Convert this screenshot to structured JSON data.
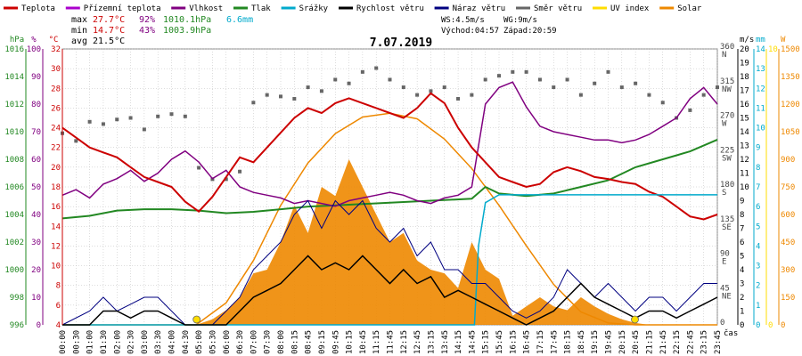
{
  "legend": [
    {
      "label": "Teplota",
      "color": "#cc0000"
    },
    {
      "label": "Přízemní teplota",
      "color": "#aa00cc"
    },
    {
      "label": "Vlhkost",
      "color": "#800080"
    },
    {
      "label": "Tlak",
      "color": "#228822"
    },
    {
      "label": "Srážky",
      "color": "#00aacc"
    },
    {
      "label": "Rychlost větru",
      "color": "#000000"
    },
    {
      "label": "Náraz větru",
      "color": "#000080"
    },
    {
      "label": "Směr větru",
      "color": "#666666"
    },
    {
      "label": "UV index",
      "color": "#ffdd00"
    },
    {
      "label": "Solar",
      "color": "#ee8800"
    }
  ],
  "stats": {
    "max_prefix": "max",
    "max_temp": "27.7°C",
    "max_hum": "92%",
    "max_press": "1010.1hPa",
    "max_rain": "6.6mm",
    "min_prefix": "min",
    "min_temp": "14.7°C",
    "min_hum": "43%",
    "min_press": "1003.9hPa",
    "avg_prefix": "avg",
    "avg_temp": "21.5°C",
    "ws": "WS:4.5m/s",
    "wg": "WG:9m/s",
    "sunrise": "Východ:04:57",
    "sunset": "Západ:20:59"
  },
  "colors": {
    "temp": "#cc0000",
    "hum": "#800080",
    "press": "#228822",
    "rain": "#00aacc",
    "wind": "#000000",
    "gust": "#000080",
    "dir": "#666666",
    "uv": "#ffdd00",
    "solar": "#ee8800",
    "grid": "#bbbbbb"
  },
  "chart_data": {
    "type": "line",
    "title": "7.07.2019",
    "xlabel": "čas",
    "x_ticks": [
      "00:00",
      "00:30",
      "01:00",
      "01:30",
      "02:00",
      "02:30",
      "03:00",
      "03:30",
      "04:00",
      "04:30",
      "05:00",
      "05:30",
      "06:00",
      "06:30",
      "07:00",
      "07:30",
      "08:00",
      "08:15",
      "08:45",
      "09:15",
      "09:45",
      "10:15",
      "10:45",
      "11:15",
      "11:45",
      "12:15",
      "12:45",
      "13:15",
      "13:45",
      "14:15",
      "14:45",
      "15:15",
      "15:45",
      "16:15",
      "16:45",
      "17:15",
      "17:45",
      "18:15",
      "18:45",
      "19:15",
      "19:45",
      "20:15",
      "20:45",
      "21:15",
      "21:45",
      "22:15",
      "22:45",
      "23:15",
      "23:45"
    ],
    "axes": {
      "pressure": {
        "label": "hPa",
        "ticks": [
          "1016",
          "1014",
          "1012",
          "1010",
          "1008",
          "1006",
          "1004",
          "1002",
          "1000",
          "998",
          "996"
        ],
        "ylim": [
          996,
          1017
        ]
      },
      "percent": {
        "label": "%",
        "ticks": [
          "100",
          "90",
          "80",
          "70",
          "60",
          "50",
          "40",
          "30",
          "20",
          "10",
          "0"
        ],
        "ylim": [
          0,
          100
        ]
      },
      "temperature": {
        "label": "°C",
        "ticks": [
          "32",
          "30",
          "28",
          "26",
          "24",
          "22",
          "20",
          "18",
          "16",
          "14",
          "12",
          "10",
          "8",
          "6",
          "4"
        ],
        "ylim": [
          4,
          32
        ]
      },
      "direction": {
        "label": "°",
        "ticks": [
          "360",
          "315",
          "270",
          "225",
          "180",
          "135",
          "90",
          "45",
          "0"
        ],
        "cardinals": [
          "N",
          "NW",
          "W",
          "SW",
          "S",
          "SE",
          "E",
          "NE",
          ""
        ],
        "ylim": [
          0,
          360
        ]
      },
      "wind": {
        "label": "m/s",
        "ticks": [
          "20",
          "19",
          "18",
          "17",
          "16",
          "15",
          "14",
          "13",
          "12",
          "11",
          "10",
          "9",
          "8",
          "7",
          "6",
          "5",
          "4",
          "3",
          "2",
          "1",
          "0"
        ],
        "ylim": [
          0,
          20
        ]
      },
      "rain": {
        "label": "mm",
        "ticks": [
          "14",
          "13",
          "12",
          "11",
          "10",
          "9",
          "8",
          "7",
          "6",
          "5",
          "4",
          "3",
          "2",
          "1",
          "0"
        ],
        "ylim": [
          0,
          14
        ]
      },
      "uv": {
        "label": "",
        "ticks": [
          "10",
          "",
          "",
          "",
          "",
          "",
          "",
          "",
          "",
          "",
          "0"
        ],
        "ylim": [
          0,
          10
        ]
      },
      "solar": {
        "label": "W",
        "ticks": [
          "1500",
          "1350",
          "1200",
          "1050",
          "900",
          "750",
          "600",
          "450",
          "300",
          "150",
          "0"
        ],
        "ylim": [
          0,
          1500
        ]
      }
    },
    "series": [
      {
        "name": "Teplota",
        "axis": "temperature",
        "x": [
          0,
          0.5,
          1,
          1.5,
          2,
          2.5,
          3,
          3.5,
          4,
          4.5,
          5,
          5.5,
          6,
          6.5,
          7,
          7.5,
          8,
          8.5,
          9,
          9.5,
          10,
          10.5,
          11,
          11.5,
          12,
          12.5,
          13,
          13.5,
          14,
          14.5,
          15,
          15.5,
          16,
          16.5,
          17,
          17.5,
          18,
          18.5,
          19,
          19.5,
          20,
          20.5,
          21,
          21.5,
          22,
          22.5,
          23,
          23.5,
          24
        ],
        "y": [
          24,
          23,
          22,
          21.5,
          21,
          20,
          19,
          18.5,
          18,
          16.5,
          15.5,
          17,
          19,
          21,
          20.5,
          22,
          23.5,
          25,
          26,
          25.5,
          26.5,
          27,
          26.5,
          26,
          25.5,
          25,
          26,
          27.5,
          26.5,
          24,
          22,
          20.5,
          19,
          18.5,
          18,
          18.3,
          19.5,
          20,
          19.6,
          19,
          18.8,
          18.5,
          18.3,
          17.5,
          17,
          16,
          15,
          14.7,
          15.2
        ]
      },
      {
        "name": "Vlhkost",
        "axis": "percent",
        "x": [
          0,
          0.5,
          1,
          1.5,
          2,
          2.5,
          3,
          3.5,
          4,
          4.5,
          5,
          5.5,
          6,
          6.5,
          7,
          7.5,
          8,
          8.5,
          9,
          9.5,
          10,
          10.5,
          11,
          11.5,
          12,
          12.5,
          13,
          13.5,
          14,
          14.5,
          15,
          15.5,
          16,
          16.5,
          17,
          17.5,
          18,
          18.5,
          19,
          19.5,
          20,
          20.5,
          21,
          21.5,
          22,
          22.5,
          23,
          23.5,
          24
        ],
        "y": [
          47,
          49,
          46,
          51,
          53,
          56,
          52,
          55,
          60,
          63,
          59,
          53,
          56,
          50,
          48,
          47,
          46,
          44,
          45,
          44,
          43,
          45,
          46,
          47,
          48,
          47,
          45,
          44,
          46,
          47,
          50,
          80,
          86,
          88,
          79,
          72,
          70,
          69,
          68,
          67,
          67,
          66,
          67,
          69,
          72,
          75,
          82,
          86,
          80
        ]
      },
      {
        "name": "Tlak",
        "axis": "pressure",
        "x": [
          0,
          1,
          2,
          3,
          4,
          5,
          6,
          7,
          8,
          9,
          10,
          11,
          12,
          13,
          14,
          15,
          15.5,
          16,
          17,
          18,
          19,
          20,
          21,
          22,
          23,
          24
        ],
        "y": [
          1004.1,
          1004.3,
          1004.7,
          1004.8,
          1004.8,
          1004.7,
          1004.5,
          1004.6,
          1004.8,
          1005.0,
          1005.1,
          1005.2,
          1005.3,
          1005.4,
          1005.5,
          1005.6,
          1006.5,
          1006.0,
          1005.8,
          1006.0,
          1006.5,
          1007.0,
          1008.0,
          1008.6,
          1009.2,
          1010.1
        ]
      },
      {
        "name": "Srážky",
        "axis": "rain",
        "x": [
          0,
          15.1,
          15.25,
          15.5,
          16,
          24
        ],
        "y": [
          0,
          0,
          4,
          6.2,
          6.6,
          6.6
        ]
      },
      {
        "name": "Rychlost větru",
        "axis": "wind",
        "x": [
          0,
          1,
          1.5,
          2,
          2.5,
          3,
          3.5,
          4,
          4.5,
          5,
          5.5,
          6,
          6.5,
          7,
          7.5,
          8,
          8.5,
          9,
          9.5,
          10,
          10.5,
          11,
          11.5,
          12,
          12.5,
          13,
          13.5,
          14,
          14.5,
          15,
          15.5,
          16,
          16.5,
          17,
          17.5,
          18,
          18.5,
          19,
          19.5,
          20,
          20.5,
          21,
          21.5,
          22,
          22.5,
          23,
          23.5,
          24
        ],
        "y": [
          0,
          0,
          1,
          1,
          0.5,
          1,
          1,
          0.5,
          0,
          0,
          0,
          0,
          1,
          2,
          2.5,
          3,
          4,
          5,
          4,
          4.5,
          4,
          5,
          4,
          3,
          4,
          3,
          3.5,
          2,
          2.5,
          2,
          1.5,
          1,
          0.5,
          0,
          0.5,
          1,
          2,
          3,
          2,
          1.5,
          1,
          0.5,
          1,
          1,
          0.5,
          1,
          1.5,
          2
        ]
      },
      {
        "name": "Náraz větru",
        "axis": "wind",
        "x": [
          0,
          1,
          1.5,
          2,
          2.5,
          3,
          3.5,
          4,
          4.5,
          5,
          5.5,
          6,
          6.5,
          7,
          7.5,
          8,
          8.5,
          9,
          9.5,
          10,
          10.5,
          11,
          11.5,
          12,
          12.5,
          13,
          13.5,
          14,
          14.5,
          15,
          15.5,
          16,
          16.5,
          17,
          17.5,
          18,
          18.5,
          19,
          19.5,
          20,
          20.5,
          21,
          21.5,
          22,
          22.5,
          23,
          23.5,
          24
        ],
        "y": [
          0,
          1,
          2,
          1,
          1.5,
          2,
          2,
          1,
          0,
          0,
          0,
          1,
          2,
          4,
          5,
          6,
          8,
          9,
          7,
          9,
          8,
          9,
          7,
          6,
          7,
          5,
          6,
          4,
          4,
          3,
          3,
          2,
          1,
          0.5,
          1,
          2,
          4,
          3,
          2,
          3,
          2,
          1,
          2,
          2,
          1,
          2,
          3,
          3
        ]
      },
      {
        "name": "Směr větru",
        "axis": "direction",
        "x": [
          0,
          0.5,
          1,
          1.5,
          2,
          2.5,
          3,
          3.5,
          4,
          4.5,
          5,
          5.5,
          6,
          6.5,
          7,
          7.5,
          8,
          8.5,
          9,
          9.5,
          10,
          10.5,
          11,
          11.5,
          12,
          12.5,
          13,
          13.5,
          14,
          14.5,
          15,
          15.5,
          16,
          16.5,
          17,
          17.5,
          18,
          18.5,
          19,
          19.5,
          20,
          20.5,
          21,
          21.5,
          22,
          22.5,
          23,
          23.5,
          24
        ],
        "y": [
          250,
          240,
          265,
          262,
          268,
          270,
          255,
          272,
          275,
          272,
          205,
          190,
          190,
          200,
          290,
          300,
          298,
          295,
          310,
          305,
          320,
          315,
          330,
          335,
          320,
          310,
          300,
          305,
          310,
          295,
          300,
          320,
          325,
          330,
          330,
          320,
          310,
          320,
          300,
          315,
          330,
          310,
          315,
          300,
          290,
          270,
          280,
          300,
          310
        ]
      },
      {
        "name": "Solar",
        "axis": "solar",
        "x": [
          0,
          4.9,
          5.5,
          6,
          6.5,
          7,
          7.5,
          8,
          8.5,
          9,
          9.5,
          10,
          10.5,
          11,
          11.5,
          12,
          12.5,
          13,
          13.5,
          14,
          14.5,
          15,
          15.5,
          16,
          16.5,
          17,
          17.5,
          18,
          18.5,
          19,
          19.5,
          20,
          20.5,
          21,
          21.5,
          24
        ],
        "y": [
          0,
          0,
          30,
          80,
          150,
          280,
          300,
          450,
          650,
          500,
          750,
          700,
          900,
          750,
          600,
          450,
          500,
          350,
          300,
          280,
          200,
          450,
          300,
          250,
          50,
          100,
          150,
          100,
          80,
          150,
          100,
          60,
          30,
          10,
          0,
          0
        ]
      },
      {
        "name": "Solar max",
        "axis": "solar",
        "x": [
          0,
          4.9,
          6,
          7,
          8,
          9,
          10,
          11,
          12,
          13,
          14,
          15,
          16,
          17,
          18,
          19,
          20,
          21,
          24
        ],
        "y": [
          0,
          0,
          120,
          350,
          650,
          880,
          1040,
          1130,
          1150,
          1120,
          1010,
          850,
          650,
          430,
          220,
          70,
          10,
          0,
          0
        ]
      },
      {
        "name": "UV index",
        "axis": "uv",
        "x": [
          4.92,
          20.98
        ],
        "y": [
          0,
          0
        ]
      }
    ]
  }
}
